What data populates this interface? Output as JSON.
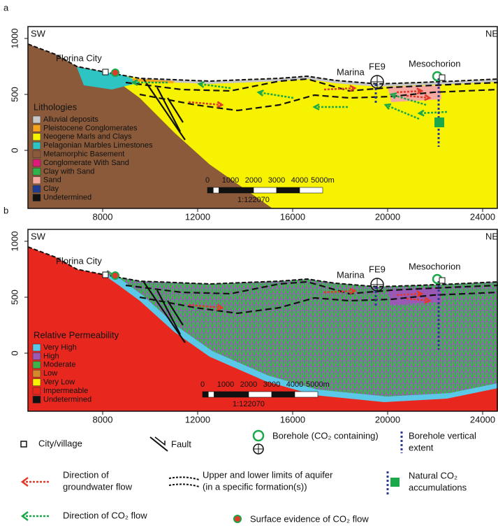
{
  "panels": [
    {
      "label": "a",
      "left": "SW",
      "right": "NE",
      "xticks": [
        8000,
        12000,
        16000,
        20000,
        24000
      ],
      "yticks": [
        0,
        500,
        1000
      ],
      "places": [
        "Florina City",
        "Marina",
        "FE9",
        "Mesochorion"
      ],
      "legend": {
        "title": "Lithologies",
        "items": [
          {
            "label": "Alluvial deposits",
            "color": "#c8c8c8"
          },
          {
            "label": "Pleistocene Conglomerates",
            "color": "#f5a21c"
          },
          {
            "label": "Neogene Marls and Clays",
            "color": "#f7f200"
          },
          {
            "label": "Pelagonian Marbles Limestones",
            "color": "#2ec4c4"
          },
          {
            "label": "Metamorphic Basement",
            "color": "#8a5a3a"
          },
          {
            "label": "Conglomerate With Sand",
            "color": "#e0197d"
          },
          {
            "label": "Clay with Sand",
            "color": "#2db34a"
          },
          {
            "label": "Sand",
            "color": "#f5a9a0"
          },
          {
            "label": "Clay",
            "color": "#1f3a93"
          },
          {
            "label": "Undetermined",
            "color": "#111111"
          }
        ]
      },
      "scale": {
        "ticks": [
          "0",
          "1000",
          "2000",
          "3000",
          "4000",
          "5000m"
        ],
        "ratio": "1:122070"
      }
    },
    {
      "label": "b",
      "left": "SW",
      "right": "NE",
      "xticks": [
        8000,
        12000,
        16000,
        20000,
        24000
      ],
      "yticks": [
        0,
        500,
        1000
      ],
      "places": [
        "Florina City",
        "Marina",
        "FE9",
        "Mesochorion"
      ],
      "legend": {
        "title": "Relative Permeability",
        "items": [
          {
            "label": "Very High",
            "color": "#5bc8e8"
          },
          {
            "label": "High",
            "color": "#9b59b6"
          },
          {
            "label": "Moderate",
            "color": "#3cb54a"
          },
          {
            "label": "Low",
            "color": "#d48a2a"
          },
          {
            "label": "Very Low",
            "color": "#f7f200"
          },
          {
            "label": "Impermeable",
            "color": "#e8281e"
          },
          {
            "label": "Undetermined",
            "color": "#111111"
          }
        ]
      },
      "scale": {
        "ticks": [
          "0",
          "1000",
          "2000",
          "3000",
          "4000",
          "5000m"
        ],
        "ratio": "1:122070"
      }
    }
  ],
  "key": [
    {
      "lines": [
        "City/village"
      ]
    },
    {
      "lines": [
        "Fault"
      ]
    },
    {
      "lines": [
        "Borehole (CO₂ containing)"
      ]
    },
    {
      "lines": [
        "Borehole vertical",
        "extent"
      ]
    },
    {
      "lines": [
        "Direction of",
        "groundwater flow"
      ]
    },
    {
      "lines": [
        "Upper and lower limits of aquifer",
        "(in a specific formation(s))"
      ]
    },
    {
      "lines": [
        "Natural CO₂",
        "accumulations"
      ]
    },
    {
      "lines": [
        "Direction of CO₂ flow"
      ]
    },
    {
      "lines": [
        "Surface evidence of CO₂ flow"
      ]
    }
  ]
}
